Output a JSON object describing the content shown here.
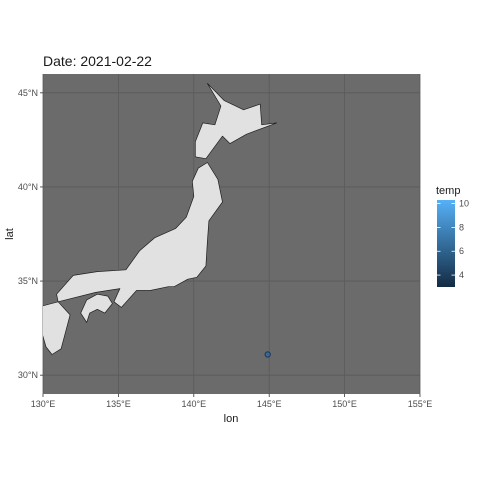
{
  "chart_data": {
    "type": "scatter",
    "title": "Date: 2021-02-22",
    "xlabel": "lon",
    "ylabel": "lat",
    "xlim": [
      130,
      155
    ],
    "ylim": [
      29,
      46
    ],
    "x_ticks": [
      130,
      135,
      140,
      145,
      150,
      155
    ],
    "x_tick_labels": [
      "130°E",
      "135°E",
      "140°E",
      "145°E",
      "150°E",
      "155°E"
    ],
    "y_ticks": [
      30,
      35,
      40,
      45
    ],
    "y_tick_labels": [
      "30°N",
      "35°N",
      "40°N",
      "45°N"
    ],
    "grid": true,
    "background_color": "#6b6b6b",
    "grid_color": "#5a5a5a",
    "land_color": "#e1e1e1",
    "land_outline_color": "#1f1f1f",
    "points": [
      {
        "lon": 144.9,
        "lat": 31.1,
        "temp": 7.6
      }
    ],
    "point_fill_color": "#3b6b95",
    "point_outline_color": "#1c3e5c",
    "legend": {
      "title": "temp",
      "position": "right",
      "min": 3,
      "max": 10.3,
      "ticks": [
        4,
        6,
        8,
        10
      ],
      "tick_labels": [
        "4",
        "6",
        "8",
        "10"
      ],
      "color_low": "#132b43",
      "color_high": "#56b1f7"
    },
    "land_polygons": [
      {
        "name": "Hokkaido",
        "points": [
          [
            140.9,
            45.5
          ],
          [
            142.0,
            44.6
          ],
          [
            143.3,
            44.1
          ],
          [
            144.4,
            44.4
          ],
          [
            144.5,
            43.3
          ],
          [
            145.5,
            43.4
          ],
          [
            143.5,
            42.8
          ],
          [
            142.4,
            42.3
          ],
          [
            141.9,
            42.7
          ],
          [
            140.8,
            41.5
          ],
          [
            140.1,
            41.6
          ],
          [
            140.1,
            42.4
          ],
          [
            140.6,
            43.4
          ],
          [
            141.4,
            43.3
          ],
          [
            141.8,
            44.3
          ]
        ]
      },
      {
        "name": "Honshu",
        "points": [
          [
            140.9,
            41.3
          ],
          [
            141.6,
            40.4
          ],
          [
            141.9,
            39.2
          ],
          [
            141.0,
            38.2
          ],
          [
            140.9,
            37.1
          ],
          [
            140.8,
            35.8
          ],
          [
            140.2,
            35.2
          ],
          [
            139.6,
            35.1
          ],
          [
            138.7,
            34.7
          ],
          [
            138.3,
            34.7
          ],
          [
            137.1,
            34.5
          ],
          [
            136.2,
            34.5
          ],
          [
            135.2,
            33.6
          ],
          [
            134.7,
            33.9
          ],
          [
            135.1,
            34.6
          ],
          [
            133.5,
            34.4
          ],
          [
            131.0,
            33.9
          ],
          [
            130.9,
            34.3
          ],
          [
            132.0,
            35.3
          ],
          [
            133.6,
            35.5
          ],
          [
            135.5,
            35.6
          ],
          [
            136.4,
            36.6
          ],
          [
            137.4,
            37.3
          ],
          [
            138.8,
            37.8
          ],
          [
            139.5,
            38.4
          ],
          [
            140.0,
            39.5
          ],
          [
            139.9,
            40.3
          ],
          [
            140.3,
            41.0
          ]
        ]
      },
      {
        "name": "Shikoku",
        "points": [
          [
            132.5,
            33.3
          ],
          [
            132.9,
            32.8
          ],
          [
            133.1,
            33.3
          ],
          [
            133.6,
            33.5
          ],
          [
            134.1,
            33.3
          ],
          [
            134.6,
            33.8
          ],
          [
            134.3,
            34.2
          ],
          [
            133.6,
            34.3
          ],
          [
            132.9,
            34.0
          ]
        ]
      },
      {
        "name": "Kyushu",
        "points": [
          [
            131.0,
            33.9
          ],
          [
            129.6,
            33.6
          ],
          [
            129.8,
            32.6
          ],
          [
            130.2,
            31.5
          ],
          [
            130.6,
            31.1
          ],
          [
            131.2,
            31.4
          ],
          [
            131.6,
            32.6
          ],
          [
            131.8,
            33.2
          ]
        ]
      }
    ]
  }
}
